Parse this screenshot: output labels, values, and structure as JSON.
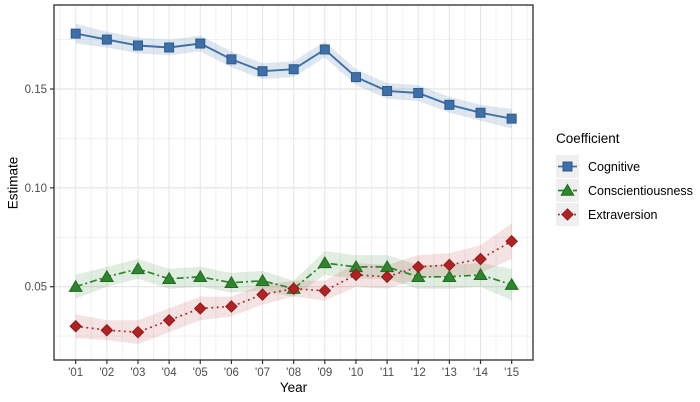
{
  "figure": {
    "background": "#ffffff"
  },
  "chart_data": {
    "type": "line",
    "title": "",
    "xlabel": "Year",
    "ylabel": "Estimate",
    "categories": [
      "'01",
      "'02",
      "'03",
      "'04",
      "'05",
      "'06",
      "'07",
      "'08",
      "'09",
      "'10",
      "'11",
      "'12",
      "'13",
      "'14",
      "'15"
    ],
    "y_tick_labels": [
      "0.05",
      "0.10",
      "0.15"
    ],
    "y_tick_values": [
      0.05,
      0.1,
      0.15
    ],
    "y_minor_values": [
      0.025,
      0.075,
      0.125,
      0.175
    ],
    "ylim": [
      0.013,
      0.192
    ],
    "grid": true,
    "legend": {
      "title": "Coefficient",
      "position": "right",
      "key_fill": "#efefef"
    },
    "series": [
      {
        "name": "Cognitive",
        "color": "#3D6FA8",
        "edge_color": "#2F5A8B",
        "band_opacity": 0.17,
        "marker": "square",
        "linestyle": "solid",
        "values": [
          0.178,
          0.175,
          0.172,
          0.171,
          0.173,
          0.165,
          0.159,
          0.16,
          0.17,
          0.156,
          0.149,
          0.148,
          0.142,
          0.138,
          0.135
        ],
        "ci_half": [
          0.005,
          0.004,
          0.004,
          0.004,
          0.004,
          0.004,
          0.004,
          0.004,
          0.004,
          0.004,
          0.004,
          0.004,
          0.004,
          0.004,
          0.005
        ]
      },
      {
        "name": "Conscientiousness",
        "color": "#2D862D",
        "edge_color": "#1F6B1F",
        "band_opacity": 0.15,
        "marker": "triangle",
        "linestyle": "dashdot",
        "values": [
          0.05,
          0.055,
          0.059,
          0.054,
          0.055,
          0.052,
          0.053,
          0.049,
          0.062,
          0.06,
          0.06,
          0.055,
          0.055,
          0.056,
          0.051
        ],
        "ci_half": [
          0.006,
          0.005,
          0.005,
          0.005,
          0.005,
          0.005,
          0.005,
          0.004,
          0.006,
          0.006,
          0.006,
          0.006,
          0.006,
          0.006,
          0.008
        ]
      },
      {
        "name": "Extraversion",
        "color": "#B22222",
        "edge_color": "#8E1A1A",
        "band_opacity": 0.13,
        "marker": "diamond",
        "linestyle": "dotted",
        "values": [
          0.03,
          0.028,
          0.027,
          0.033,
          0.039,
          0.04,
          0.046,
          0.049,
          0.048,
          0.056,
          0.055,
          0.06,
          0.061,
          0.064,
          0.073
        ],
        "ci_half": [
          0.006,
          0.005,
          0.006,
          0.006,
          0.006,
          0.005,
          0.005,
          0.004,
          0.005,
          0.006,
          0.006,
          0.006,
          0.006,
          0.007,
          0.009
        ]
      }
    ],
    "colors": {
      "panel_border": "#3c3c3c",
      "grid_major": "#e4e4e4",
      "grid_minor": "#f1f1f1",
      "tick": "#333333",
      "tick_label": "#4d4d4d",
      "axis_title": "#000000"
    }
  }
}
